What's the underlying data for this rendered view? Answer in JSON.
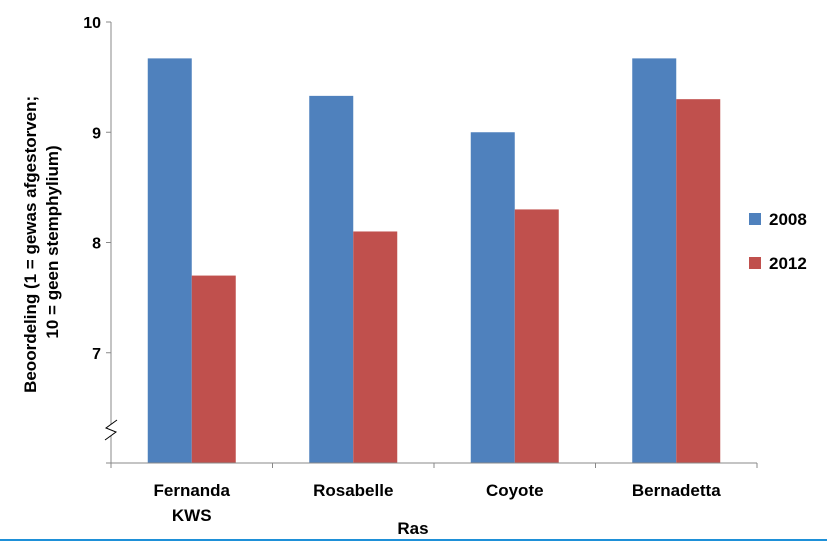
{
  "chart_data": {
    "type": "bar",
    "categories": [
      [
        "Fernanda",
        "KWS"
      ],
      [
        "Rosabelle"
      ],
      [
        "Coyote"
      ],
      [
        "Bernadetta"
      ]
    ],
    "series": [
      {
        "name": "2008",
        "values": [
          9.67,
          9.33,
          9.0,
          9.67
        ],
        "color": "#4F81BD"
      },
      {
        "name": "2012",
        "values": [
          7.7,
          8.1,
          8.3,
          9.3
        ],
        "color": "#C0504D"
      }
    ],
    "title": "",
    "xlabel": "Ras",
    "ylabel": [
      "Beoordeling (1 = gewas afgestorven;",
      "10 = geen stemphylium)"
    ],
    "ylim": [
      6,
      10
    ],
    "yticks": [
      "7",
      "8",
      "9",
      "10"
    ],
    "axis_break": true,
    "grid": false,
    "legend_position": "right"
  }
}
